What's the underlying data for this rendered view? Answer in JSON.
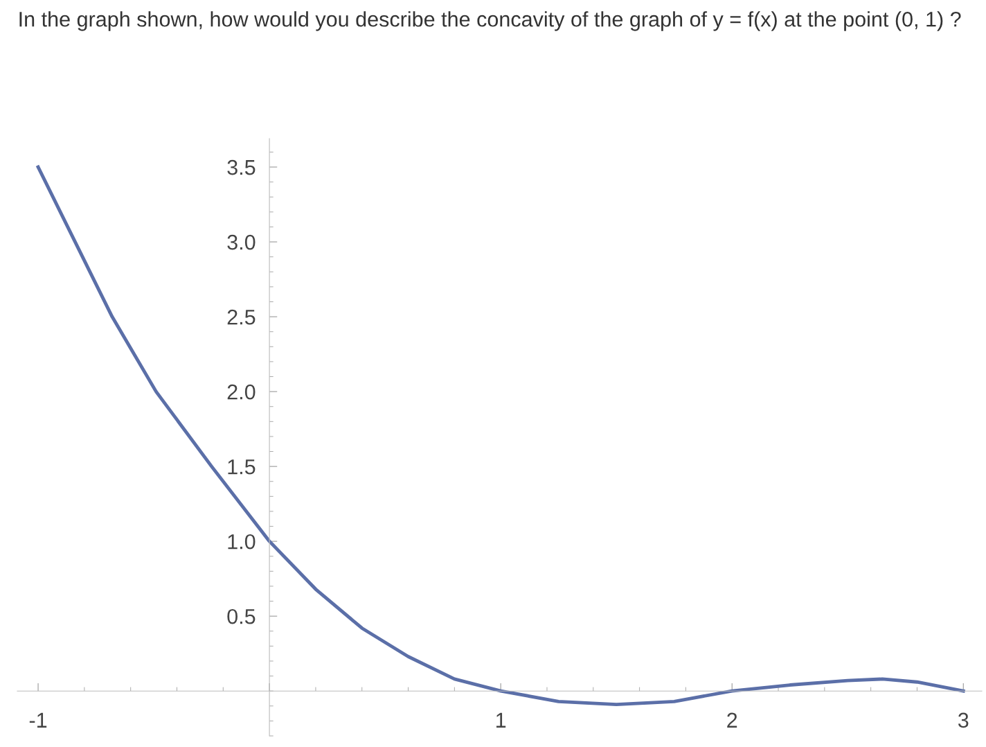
{
  "chart_data": {
    "type": "line",
    "title": "In the graph shown, how would you describe the concavity of the graph of y = f(x) at the point (0, 1) ?",
    "x": [
      -1,
      -0.84,
      -0.68,
      -0.49,
      -0.25,
      0,
      0.2,
      0.4,
      0.6,
      0.8,
      1,
      1.25,
      1.5,
      1.75,
      2,
      2.25,
      2.5,
      2.65,
      2.8,
      3
    ],
    "series": [
      {
        "color": "#5b6fa8",
        "values": [
          3.5,
          3.0,
          2.5,
          2.0,
          1.5,
          1.0,
          0.68,
          0.42,
          0.23,
          0.08,
          0,
          -0.07,
          -0.09,
          -0.07,
          0,
          0.04,
          0.07,
          0.08,
          0.06,
          0
        ]
      }
    ],
    "xlim": [
      -1.09,
      3.08
    ],
    "ylim": [
      -0.3,
      3.69
    ],
    "xticks": [
      -1,
      {
        "value": 0,
        "label": null
      },
      1,
      2,
      3
    ],
    "yticks": [
      0.5,
      {
        "value": 1,
        "label": "1.0"
      },
      1.5,
      {
        "value": 2,
        "label": "2.0"
      },
      2.5,
      {
        "value": 3,
        "label": "3.0"
      },
      3.5
    ],
    "grid": false,
    "legend": false,
    "marker": "none",
    "line_style": "solid"
  }
}
